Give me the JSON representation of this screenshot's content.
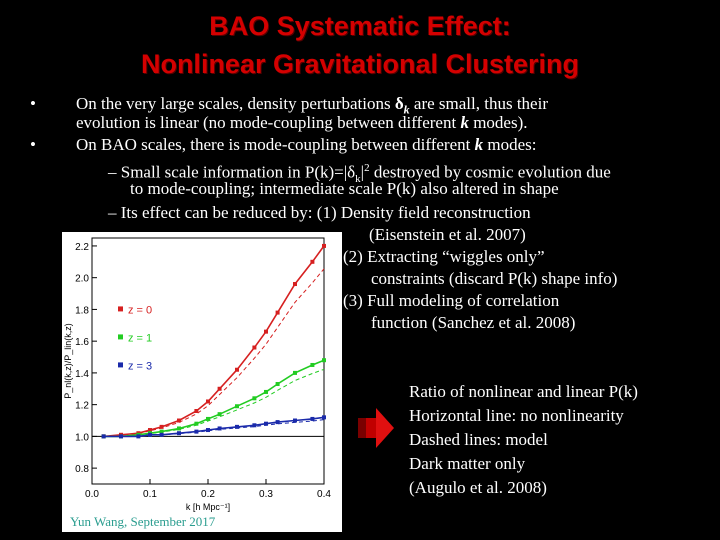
{
  "title": {
    "line1": "BAO Systematic Effect:",
    "line2": "Nonlinear Gravitational Clustering"
  },
  "bullets": {
    "b1_l1_pre": "On the very large scales, density perturbations ",
    "b1_l1_sym": "δ",
    "b1_l1_sub": "k",
    "b1_l1_post": " are small, thus their",
    "b1_l2_pre": "evolution is linear (no mode-coupling between different ",
    "b1_l2_k": "k",
    "b1_l2_post": " modes).",
    "b2_l1_pre": "On BAO scales, there is mode-coupling between different ",
    "b2_l1_k": "k",
    "b2_l1_post": " modes:",
    "s1_l1_pre": "– Small scale information in P(k)=|δ",
    "s1_l1_sub": "k",
    "s1_l1_sup": "2",
    "s1_l1_post": " destroyed by cosmic evolution due",
    "s1_l2": "to mode-coupling; intermediate scale P(k) also altered in shape",
    "s2_l1": "– Its effect can be reduced by:  (1) Density field reconstruction",
    "s2_l2": "(Eisenstein et al. 2007)",
    "s2_l3": "(2) Extracting “wiggles only”",
    "s2_l4": "constraints (discard P(k) shape info)",
    "s2_l5": "(3) Full modeling of correlation",
    "s2_l6": "function (Sanchez et al. 2008)"
  },
  "caption": {
    "l1": "Ratio of nonlinear and linear P(k)",
    "l2": "Horizontal line: no nonlinearity",
    "l3": "Dashed lines: model",
    "l4": "Dark matter only",
    "l5": "(Augulo et al. 2008)"
  },
  "footer": "Yun Wang, September 2017",
  "chart_data": {
    "type": "line",
    "xlabel": "k [h Mpc⁻¹]",
    "ylabel": "P_nl(k,z)/P_lin(k,z)",
    "xlim": [
      0.0,
      0.4
    ],
    "ylim": [
      0.7,
      2.25
    ],
    "xticks": [
      "0.0",
      "0.1",
      "0.2",
      "0.3",
      "0.4"
    ],
    "yticks": [
      "0.8",
      "1.0",
      "1.2",
      "1.4",
      "1.6",
      "1.8",
      "2.0",
      "2.2"
    ],
    "legend": [
      "z = 0",
      "z = 1",
      "z = 3"
    ],
    "colors": [
      "#d62020",
      "#22cc22",
      "#1a2aaa"
    ],
    "reference_line": 1.0,
    "x": [
      0.02,
      0.05,
      0.08,
      0.1,
      0.12,
      0.15,
      0.18,
      0.2,
      0.22,
      0.25,
      0.28,
      0.3,
      0.32,
      0.35,
      0.38,
      0.4
    ],
    "series": [
      {
        "name": "z = 0",
        "values": [
          1.0,
          1.01,
          1.02,
          1.04,
          1.06,
          1.1,
          1.16,
          1.22,
          1.3,
          1.42,
          1.56,
          1.66,
          1.78,
          1.96,
          2.1,
          2.2
        ]
      },
      {
        "name": "z = 1",
        "values": [
          1.0,
          1.0,
          1.01,
          1.02,
          1.03,
          1.05,
          1.08,
          1.11,
          1.14,
          1.19,
          1.24,
          1.28,
          1.33,
          1.4,
          1.45,
          1.48
        ]
      },
      {
        "name": "z = 3",
        "values": [
          1.0,
          1.0,
          1.0,
          1.01,
          1.01,
          1.02,
          1.03,
          1.04,
          1.05,
          1.06,
          1.07,
          1.08,
          1.09,
          1.1,
          1.11,
          1.12
        ]
      }
    ]
  },
  "colors": {
    "title": "#d40000",
    "arrow": "#e01010"
  }
}
